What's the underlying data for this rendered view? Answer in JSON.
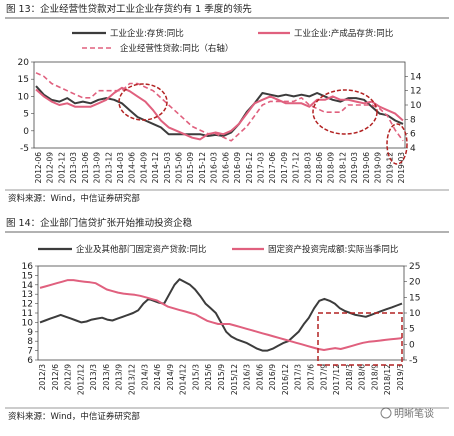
{
  "figure1": {
    "caption": "图 13：企业经营性贷款对工业企业存货约有 1 季度的领先",
    "source": "资料来源：Wind，中信证券研究部"
  },
  "figure2": {
    "caption": "图 14：企业部门信贷扩张开始推动投资企稳",
    "source": "资料来源：Wind，中信证券研究部"
  },
  "watermark": "明晰笔谈",
  "colors": {
    "dark": "#3c3c3c",
    "pink": "#e0607e",
    "red": "#b22222"
  },
  "chart_data": [
    {
      "type": "line",
      "x_labels": [
        "2012-06",
        "2012-09",
        "2012-12",
        "2013-03",
        "2013-06",
        "2013-09",
        "2013-12",
        "2014-03",
        "2014-06",
        "2014-09",
        "2014-12",
        "2015-03",
        "2015-06",
        "2015-09",
        "2015-12",
        "2016-03",
        "2016-06",
        "2016-09",
        "2016-12",
        "2017-03",
        "2017-06",
        "2017-09",
        "2017-12",
        "2018-03",
        "2018-06",
        "2018-09",
        "2018-12",
        "2019-03",
        "2019-06",
        "2019-09",
        "2019-12",
        "2019-03"
      ],
      "left_axis": {
        "ylim": [
          -5,
          20
        ],
        "ticks": [
          -5,
          0,
          5,
          10,
          15,
          20
        ]
      },
      "right_axis": {
        "ylim": [
          4,
          16
        ],
        "ticks": [
          4,
          6,
          8,
          10,
          12,
          14
        ]
      },
      "series": [
        {
          "name": "工业企业:存货:同比",
          "axis": "left",
          "style": "solid",
          "color": "#3c3c3c",
          "values": [
            13,
            10.5,
            9,
            8.5,
            9.5,
            8,
            8.5,
            8,
            9,
            9.5,
            9,
            8,
            6,
            4,
            3,
            2,
            1,
            -1,
            -1,
            -1,
            -1,
            -1,
            -1.5,
            -1.2,
            -1.5,
            -0.5,
            2,
            5.5,
            8,
            11,
            10.5,
            10,
            10.5,
            10,
            10.5,
            10,
            11,
            10,
            9,
            8.5,
            9.5,
            9.5,
            9,
            7,
            5,
            4.5,
            3,
            2
          ]
        },
        {
          "name": "工业企业:产成品存货:同比",
          "axis": "left",
          "style": "solid",
          "color": "#e0607e",
          "values": [
            12,
            10,
            8.5,
            7.5,
            8,
            7,
            7,
            7,
            8,
            9,
            11,
            12.5,
            11.5,
            10,
            8.5,
            6,
            3,
            1,
            0,
            -1,
            -2,
            -2.5,
            -1,
            -0.5,
            -1,
            0,
            2,
            5,
            8,
            9,
            10,
            9,
            8,
            8,
            8,
            7,
            9,
            9,
            10,
            9,
            9,
            8.5,
            8,
            8.5,
            7,
            6,
            5,
            3
          ]
        },
        {
          "name": "企业经营性贷款:同比（右轴）",
          "axis": "right",
          "style": "dashed",
          "color": "#e0607e",
          "values": [
            14.5,
            14,
            13,
            12.5,
            12,
            11.5,
            11,
            11,
            12,
            12,
            12,
            12,
            13,
            13,
            12.5,
            12,
            11,
            10,
            9,
            8,
            7,
            6.5,
            6,
            6,
            5.5,
            5,
            6,
            7,
            8.5,
            10,
            10.5,
            10.5,
            10.5,
            10.5,
            11,
            10,
            9.5,
            9,
            9,
            9,
            10,
            10,
            10,
            10,
            9.5,
            8.5,
            6.5,
            5
          ]
        }
      ]
    },
    {
      "type": "line",
      "x_labels": [
        "2012/3",
        "2012/6",
        "2012/9",
        "2012/12",
        "2013/3",
        "2013/6",
        "2013/9",
        "2013/12",
        "2014/3",
        "2014/6",
        "2014/9",
        "2014/12",
        "2015/3",
        "2015/6",
        "2015/9",
        "2015/12",
        "2016/3",
        "2016/6",
        "2016/9",
        "2016/12",
        "2017/3",
        "2017/6",
        "2017/9",
        "2017/12",
        "2018/3",
        "2018/6",
        "2018/9",
        "2018/12",
        "2019/3"
      ],
      "left_axis": {
        "ylim": [
          6,
          16
        ],
        "ticks": [
          6,
          7,
          8,
          9,
          10,
          11,
          12,
          13,
          14,
          15,
          16
        ]
      },
      "right_axis": {
        "ylim": [
          -5,
          25
        ],
        "ticks": [
          -5,
          0,
          5,
          10,
          15,
          20,
          25
        ]
      },
      "series": [
        {
          "name": "企业及其他部门固定资产贷款:同比",
          "axis": "left",
          "style": "solid",
          "color": "#3c3c3c",
          "values": [
            10,
            10.2,
            10.4,
            10.6,
            10.8,
            10.6,
            10.4,
            10.2,
            10,
            10.1,
            10.3,
            10.4,
            10.5,
            10.3,
            10.2,
            10.4,
            10.6,
            10.8,
            11,
            11.3,
            12,
            12.5,
            12.3,
            12.1,
            12,
            13,
            14,
            14.6,
            14.3,
            14,
            13.5,
            12.8,
            12,
            11.5,
            11,
            10,
            9,
            8.5,
            8.2,
            8,
            7.8,
            7.5,
            7.2,
            7,
            7,
            7.2,
            7.5,
            7.8,
            8,
            8.5,
            9,
            9.8,
            10.5,
            11.5,
            12.3,
            12.5,
            12.3,
            12,
            11.5,
            11.2,
            11,
            10.8,
            10.7,
            10.6,
            10.8,
            11,
            11.2,
            11.4,
            11.6,
            11.8,
            12
          ]
        },
        {
          "name": "固定资产投资完成额:实际当季同比",
          "axis": "right",
          "style": "solid",
          "color": "#e0607e",
          "values": [
            18,
            18.5,
            19,
            19.5,
            20,
            20.5,
            20.5,
            20.2,
            20,
            19.8,
            19.5,
            18.5,
            17.5,
            17,
            16.5,
            16.2,
            16,
            15.8,
            15.5,
            15,
            14.5,
            14,
            13,
            12,
            11.5,
            11,
            10.5,
            10,
            9.5,
            8.5,
            7.5,
            7,
            6.5,
            6.5,
            6.5,
            6,
            5.5,
            5,
            4.5,
            4,
            3.5,
            3,
            2.5,
            2,
            1.5,
            1,
            0.5,
            0,
            -0.5,
            -1,
            -1.5,
            -1.8,
            -1.5,
            -1.2,
            -1.5,
            -1,
            -0.5,
            0,
            0.5,
            0.8,
            1,
            1.2,
            1.4,
            1.6,
            1.8,
            2
          ]
        }
      ]
    }
  ]
}
